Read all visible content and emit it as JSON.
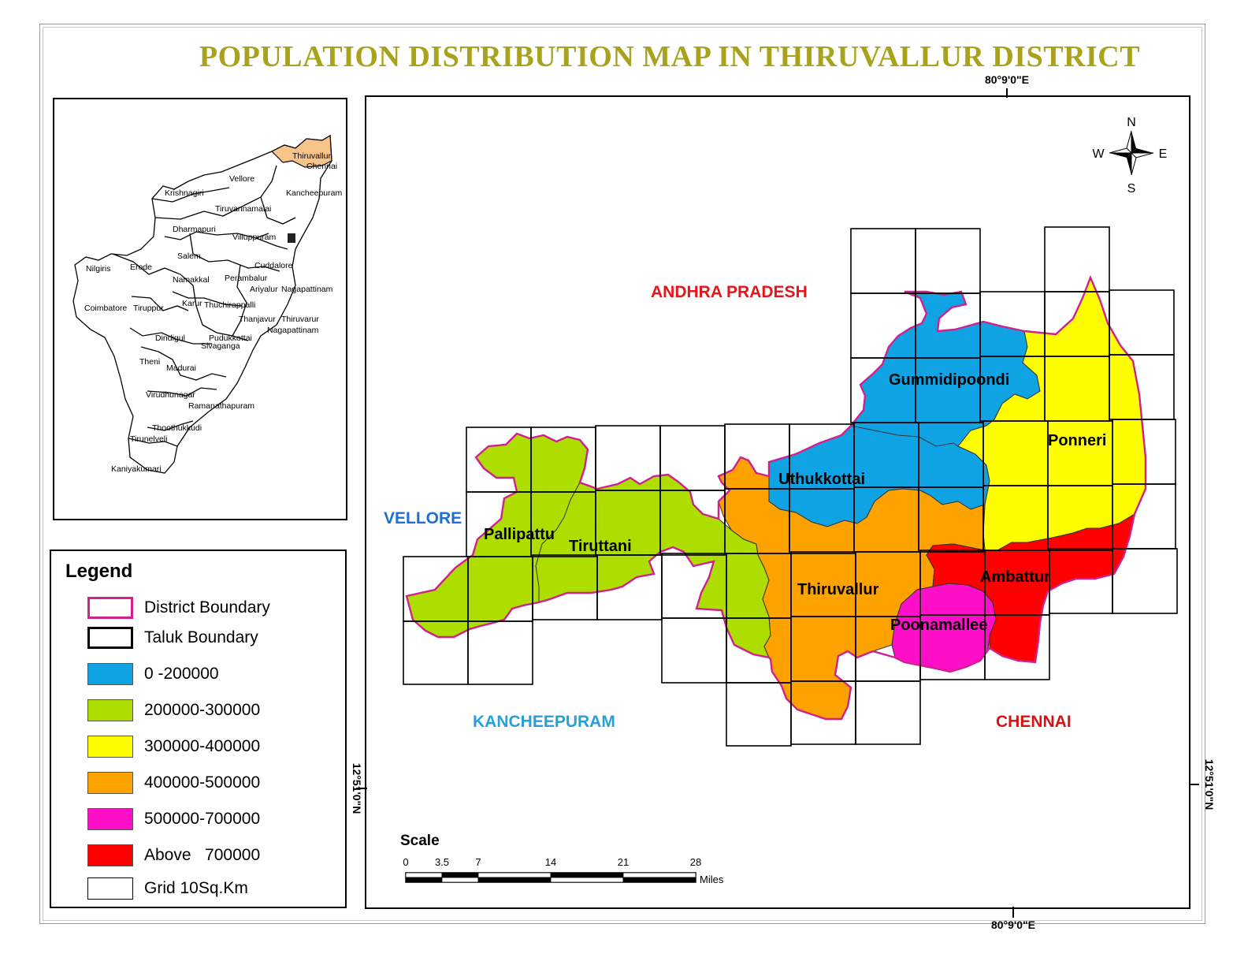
{
  "title": "POPULATION DISTRIBUTION MAP IN THIRUVALLUR DISTRICT",
  "coordinates": {
    "top_lon": "80°9'0\"E",
    "bottom_lon": "80°9'0\"E",
    "left_lat": "12°51'0\"N",
    "right_lat": "12°51'0\"N"
  },
  "compass": {
    "n": "N",
    "s": "S",
    "e": "E",
    "w": "W"
  },
  "neighbors": [
    {
      "name": "ANDHRA PRADESH",
      "color": "#e8141b"
    },
    {
      "name": "VELLORE",
      "color": "#1f6fd1"
    },
    {
      "name": "KANCHEEPURAM",
      "color": "#25a0d8"
    },
    {
      "name": "CHENNAI",
      "color": "#d41414"
    }
  ],
  "taluks": [
    {
      "name": "Gummidipoondi",
      "population_class": "0 -200000",
      "color": "#10a3e4"
    },
    {
      "name": "Uthukkottai",
      "population_class": "0 -200000",
      "color": "#10a3e4"
    },
    {
      "name": "Ponneri",
      "population_class": "300000-400000",
      "color": "#fefe00"
    },
    {
      "name": "Pallipattu",
      "population_class": "200000-300000",
      "color": "#aede00"
    },
    {
      "name": "Tiruttani",
      "population_class": "200000-300000",
      "color": "#aede00"
    },
    {
      "name": "Thiruvallur",
      "population_class": "400000-500000",
      "color": "#fea200"
    },
    {
      "name": "Ambattur",
      "population_class": "Above   700000",
      "color": "#ff0000"
    },
    {
      "name": "Poonamallee",
      "population_class": "500000-700000",
      "color": "#ff10c8"
    }
  ],
  "legend": {
    "title": "Legend",
    "items": [
      {
        "label": "District Boundary",
        "kind": "district-boundary",
        "color": "#d0208f"
      },
      {
        "label": "Taluk Boundary",
        "kind": "taluk-boundary",
        "color": "#000000"
      },
      {
        "label": "0 -200000",
        "kind": "fill",
        "color": "#10a3e4"
      },
      {
        "label": "200000-300000",
        "kind": "fill",
        "color": "#aede00"
      },
      {
        "label": "300000-400000",
        "kind": "fill",
        "color": "#fefe00"
      },
      {
        "label": "400000-500000",
        "kind": "fill",
        "color": "#fea200"
      },
      {
        "label": "500000-700000",
        "kind": "fill",
        "color": "#ff10c8"
      },
      {
        "label": "Above   700000",
        "kind": "fill",
        "color": "#ff0000"
      },
      {
        "label": "Grid 10Sq.Km",
        "kind": "grid",
        "color": "#000000"
      }
    ]
  },
  "scale": {
    "title": "Scale",
    "ticks": [
      "0",
      "3.5",
      "7",
      "14",
      "21",
      "28"
    ],
    "unit": "Miles"
  },
  "inset": {
    "highlight": "Thiruvallur",
    "highlight_color": "#f7c48a",
    "districts": [
      "Thiruvallur",
      "Chennai",
      "Vellore",
      "Kancheepuram",
      "Krishnagiri",
      "Tiruvannamalai",
      "Dharmapuri",
      "Villuppuram",
      "Salem",
      "Cuddalore",
      "Nilgiris",
      "Erode",
      "Namakkal",
      "Perambalur",
      "Ariyalur",
      "Nagapattinam",
      "Coimbatore",
      "Tiruppur",
      "Karur",
      "Thuchirappalli",
      "Thanjavur",
      "Thiruvarur",
      "Nagapattinam",
      "Dindigul",
      "Pudukkottai",
      "Theni",
      "Madurai",
      "Sivaganga",
      "Virudhunagar",
      "Ramanathapuram",
      "Thoothukkudi",
      "Tirunelveli",
      "Kaniyakumari"
    ]
  }
}
